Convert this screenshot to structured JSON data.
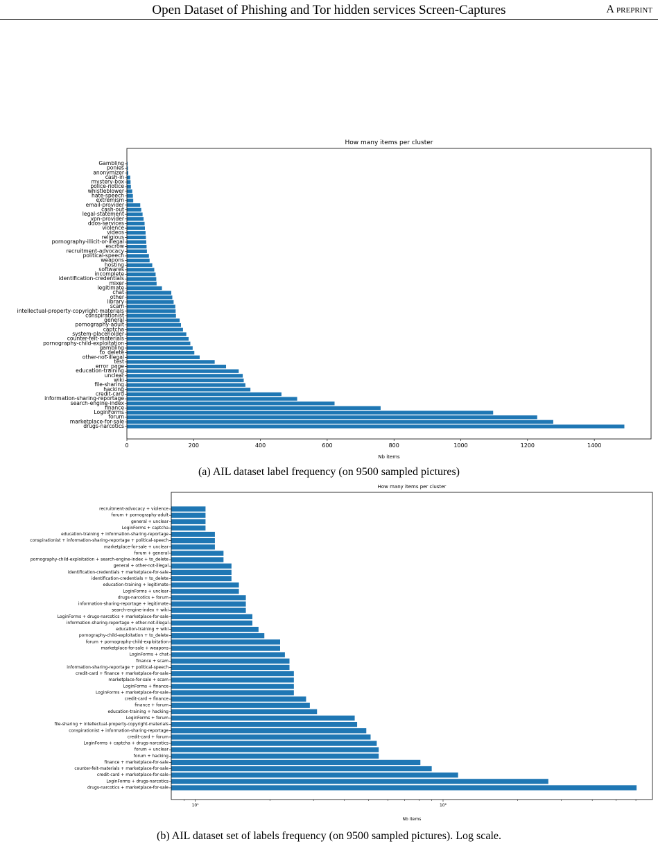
{
  "header": {
    "title": "Open Dataset of Phishing and Tor hidden services Screen-Captures",
    "right": "A preprint"
  },
  "captions": {
    "a": "(a) AIL dataset label frequency (on 9500 sampled pictures)",
    "b": "(b) AIL dataset set of labels frequency (on 9500 sampled pictures). Log scale."
  },
  "chart_data": [
    {
      "type": "bar",
      "orientation": "horizontal",
      "title": "How many items per cluster",
      "xlabel": "Nb items",
      "ylabel": "",
      "xlim": [
        0,
        1570
      ],
      "xticks": [
        0,
        200,
        400,
        600,
        800,
        1000,
        1200,
        1400
      ],
      "color": "#1f77b4",
      "categories": [
        "Gambling",
        "ponies",
        "anonymizer",
        "cash-in",
        "mystery-box",
        "police-notice",
        "whistleblower",
        "hate-speech",
        "extremism",
        "email-provider",
        "cash-out",
        "legal-statement",
        "vpn-provider",
        "ddos-services",
        "violence",
        "videos",
        "religious",
        "pornography-illicit-or-illegal",
        "escrow",
        "recruitment-advocacy",
        "political-speech",
        "weapons",
        "hosting",
        "softwares",
        "incomplete",
        "identification-credentials",
        "mixer",
        "legitimate",
        "chat",
        "other",
        "library",
        "scam",
        "intellectual-property-copyright-materials",
        "conspirationist",
        "general",
        "pornography-adult",
        "captcha",
        "system-placeholder",
        "counter-feit-materials",
        "pornography-child-exploitation",
        "gambling",
        "to_delete",
        "other-not-illegal",
        "test",
        "error_page",
        "education-training",
        "unclear",
        "wiki",
        "file-sharing",
        "hacking",
        "credit-card",
        "information-sharing-reportage",
        "search-engine-index",
        "finance",
        "LoginForms",
        "forum",
        "marketplace-for-sale",
        "drugs-narcotics"
      ],
      "values": [
        2,
        3,
        4,
        10,
        11,
        12,
        16,
        18,
        19,
        40,
        43,
        47,
        50,
        53,
        54,
        56,
        57,
        58,
        59,
        60,
        66,
        68,
        76,
        82,
        86,
        88,
        89,
        105,
        133,
        136,
        140,
        145,
        146,
        147,
        158,
        162,
        168,
        178,
        185,
        190,
        197,
        202,
        218,
        263,
        297,
        335,
        347,
        350,
        355,
        370,
        463,
        510,
        622,
        760,
        1097,
        1229,
        1277,
        1490
      ]
    },
    {
      "type": "bar",
      "orientation": "horizontal",
      "title": "How many items per cluster",
      "xlabel": "Nb items",
      "ylabel": "",
      "xscale": "log",
      "xlim": [
        8,
        700
      ],
      "xticks": [
        10,
        100
      ],
      "xtick_labels": [
        "10¹",
        "10²"
      ],
      "color": "#1f77b4",
      "categories": [
        "recruitment-advocacy + violence",
        "forum + pornography-adult",
        "general + unclear",
        "LoginForms + captcha",
        "education-training + information-sharing-reportage",
        "conspirationist + information-sharing-reportage + political-speech",
        "marketplace-for-sale + unclear",
        "forum + general",
        "pornography-child-exploitation + search-engine-index + to_delete",
        "general + other-not-illegal",
        "identification-credentials + marketplace-for-sale",
        "identification-credentials + to_delete",
        "education-training + legitimate",
        "LoginForms + unclear",
        "drugs-narcotics + forum",
        "information-sharing-reportage + legitimate",
        "search-engine-index + wiki",
        "LoginForms + drugs-narcotics + marketplace-for-sale",
        "information-sharing-reportage + other-not-illegal",
        "education-training + wiki",
        "pornography-child-exploitation + to_delete",
        "forum + pornography-child-exploitation",
        "marketplace-for-sale + weapons",
        "LoginForms + chat",
        "finance + scam",
        "information-sharing-reportage + political-speech",
        "credit-card + finance + marketplace-for-sale",
        "marketplace-for-sale + scam",
        "LoginForms + finance",
        "LoginForms + marketplace-for-sale",
        "credit-card + finance",
        "finance + forum",
        "education-training + hacking",
        "LoginForms + forum",
        "file-sharing + intellectual-property-copyright-materials",
        "conspirationist + information-sharing-reportage",
        "credit-card + forum",
        "LoginForms + captcha + drugs-narcotics",
        "forum + unclear",
        "forum + hacking",
        "finance + marketplace-for-sale",
        "counter-feit-materials + marketplace-for-sale",
        "credit-card + marketplace-for-sale",
        "LoginForms + drugs-narcotics",
        "drugs-narcotics + marketplace-for-sale"
      ],
      "values": [
        11,
        11,
        11,
        11,
        12,
        12,
        12,
        13,
        13,
        14,
        14,
        14,
        15,
        15,
        16,
        16,
        16,
        17,
        17,
        18,
        19,
        22,
        22,
        23,
        24,
        24,
        25,
        25,
        25,
        25,
        28,
        29,
        31,
        44,
        45,
        49,
        51,
        54,
        55,
        55,
        81,
        90,
        115,
        266,
        604
      ]
    }
  ]
}
